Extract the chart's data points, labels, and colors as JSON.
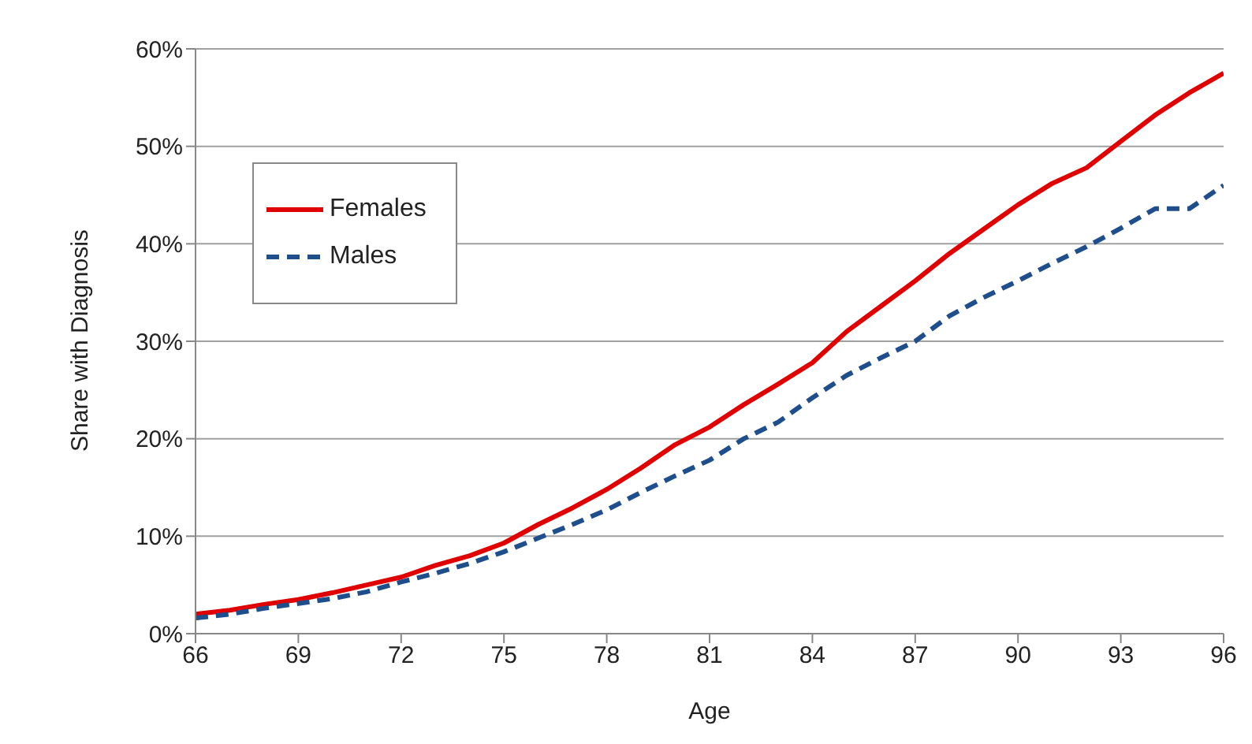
{
  "chart_data": {
    "type": "line",
    "xlabel": "Age",
    "ylabel": "Share with Diagnosis",
    "x": [
      66,
      67,
      68,
      69,
      70,
      71,
      72,
      73,
      74,
      75,
      76,
      77,
      78,
      79,
      80,
      81,
      82,
      83,
      84,
      85,
      86,
      87,
      88,
      89,
      90,
      91,
      92,
      93,
      94,
      95,
      96
    ],
    "series": [
      {
        "name": "Females",
        "color": "#e00000",
        "line_style": "solid",
        "values": [
          2.0,
          2.4,
          3.0,
          3.5,
          4.2,
          5.0,
          5.8,
          7.0,
          8.0,
          9.3,
          11.2,
          12.9,
          14.8,
          17.0,
          19.4,
          21.2,
          23.5,
          25.6,
          27.8,
          31.0,
          33.6,
          36.2,
          39.0,
          41.5,
          44.0,
          46.2,
          47.8,
          50.5,
          53.2,
          55.5,
          57.5
        ]
      },
      {
        "name": "Males",
        "color": "#1f4e8c",
        "line_style": "dashed",
        "values": [
          1.6,
          2.0,
          2.6,
          3.1,
          3.6,
          4.3,
          5.3,
          6.2,
          7.2,
          8.4,
          9.8,
          11.2,
          12.7,
          14.5,
          16.2,
          17.8,
          20.0,
          21.7,
          24.2,
          26.5,
          28.3,
          30.0,
          32.6,
          34.5,
          36.2,
          38.0,
          39.7,
          41.6,
          43.6,
          43.6,
          46.0
        ]
      }
    ],
    "xlim": [
      66,
      96
    ],
    "xticks": [
      66,
      69,
      72,
      75,
      78,
      81,
      84,
      87,
      90,
      93,
      96
    ],
    "ylim": [
      0,
      60
    ],
    "yticks": [
      {
        "value": 0,
        "label": "0%"
      },
      {
        "value": 10,
        "label": "10%"
      },
      {
        "value": 20,
        "label": "20%"
      },
      {
        "value": 30,
        "label": "30%"
      },
      {
        "value": 40,
        "label": "40%"
      },
      {
        "value": 50,
        "label": "50%"
      },
      {
        "value": 60,
        "label": "60%"
      }
    ],
    "grid": "y",
    "legend": "top left",
    "marker": "none"
  }
}
